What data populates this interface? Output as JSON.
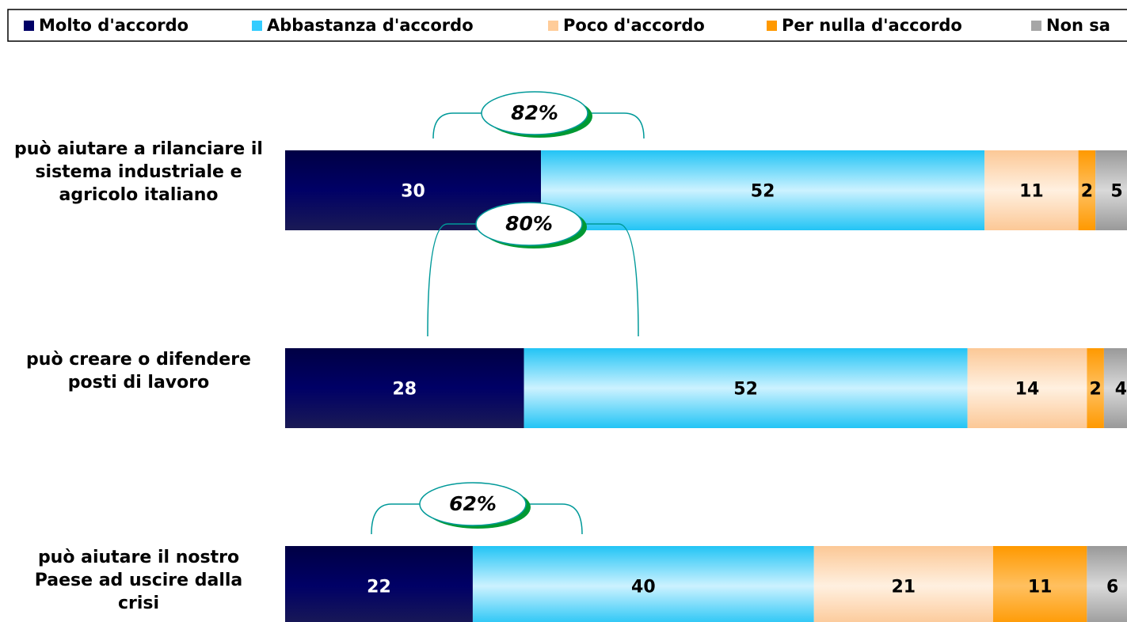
{
  "chart_data": {
    "type": "stacked-bar-horizontal",
    "categories": [
      "può aiutare a rilanciare il sistema industriale e agricolo italiano",
      "può creare o difendere posti di lavoro",
      "può aiutare il nostro Paese ad uscire dalla crisi"
    ],
    "series": [
      {
        "name": "Molto d'accordo",
        "color": "#000066",
        "values": [
          30,
          28,
          22
        ]
      },
      {
        "name": "Abbastanza d'accordo",
        "color": "#33ccff",
        "values": [
          52,
          52,
          40
        ]
      },
      {
        "name": "Poco d'accordo",
        "color": "#ffcc99",
        "values": [
          11,
          14,
          21
        ]
      },
      {
        "name": "Per nulla d'accordo",
        "color": "#ff9900",
        "values": [
          2,
          2,
          11
        ]
      },
      {
        "name": "Non sa",
        "color": "#a6a6a6",
        "values": [
          5,
          4,
          6
        ]
      }
    ],
    "annotations": [
      "82%",
      "80%",
      "62%"
    ],
    "xlim": [
      0,
      100
    ],
    "legend": "top"
  }
}
